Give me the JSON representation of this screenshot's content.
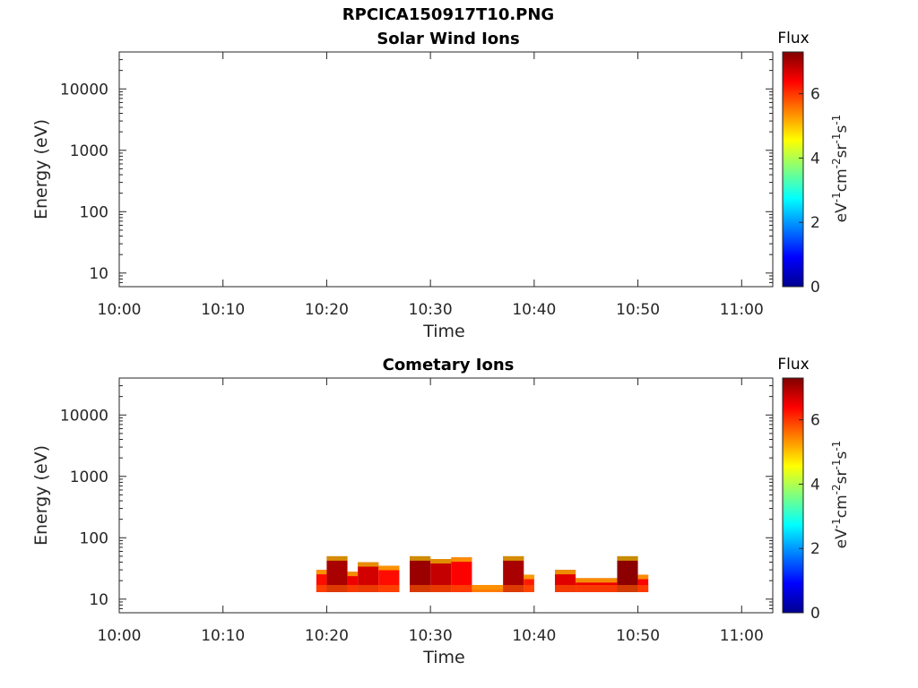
{
  "figure_title": "RPCICA150917T10.PNG",
  "chart_data": [
    {
      "type": "heatmap",
      "title": "Solar Wind Ions",
      "xlabel": "Time",
      "ylabel": "Energy (eV)",
      "x_ticks": [
        "10:00",
        "10:10",
        "10:20",
        "10:30",
        "10:40",
        "10:50",
        "11:00"
      ],
      "y_ticks": [
        "10",
        "100",
        "1000",
        "10000"
      ],
      "y_scale": "log",
      "xlim": [
        "10:00",
        "11:03"
      ],
      "ylim": [
        6,
        40000
      ],
      "colorbar": {
        "label_top": "Flux",
        "unit": "eV-1cm-2sr-1s-1",
        "ticks": [
          "0",
          "2",
          "4",
          "6"
        ],
        "range": [
          0,
          7.3
        ]
      },
      "colormap": "jet",
      "blocks": []
    },
    {
      "type": "heatmap",
      "title": "Cometary Ions",
      "xlabel": "Time",
      "ylabel": "Energy (eV)",
      "x_ticks": [
        "10:00",
        "10:10",
        "10:20",
        "10:30",
        "10:40",
        "10:50",
        "11:00"
      ],
      "y_ticks": [
        "10",
        "100",
        "1000",
        "10000"
      ],
      "y_scale": "log",
      "xlim": [
        "10:00",
        "11:03"
      ],
      "ylim": [
        6,
        40000
      ],
      "colorbar": {
        "label_top": "Flux",
        "unit": "eV-1cm-2sr-1s-1",
        "ticks": [
          "0",
          "2",
          "4",
          "6"
        ],
        "range": [
          0,
          7.3
        ]
      },
      "colormap": "jet",
      "blocks": [
        {
          "t0": "10:19",
          "t1": "10:20",
          "e_min": 13,
          "e_max": 30,
          "flux": 6.3
        },
        {
          "t0": "10:20",
          "t1": "10:22",
          "e_min": 13,
          "e_max": 50,
          "flux": 7.0
        },
        {
          "t0": "10:22",
          "t1": "10:23",
          "e_min": 13,
          "e_max": 28,
          "flux": 6.5
        },
        {
          "t0": "10:23",
          "t1": "10:25",
          "e_min": 13,
          "e_max": 40,
          "flux": 6.7
        },
        {
          "t0": "10:25",
          "t1": "10:27",
          "e_min": 13,
          "e_max": 35,
          "flux": 6.3
        },
        {
          "t0": "10:28",
          "t1": "10:30",
          "e_min": 13,
          "e_max": 50,
          "flux": 7.1
        },
        {
          "t0": "10:30",
          "t1": "10:32",
          "e_min": 13,
          "e_max": 45,
          "flux": 6.8
        },
        {
          "t0": "10:32",
          "t1": "10:34",
          "e_min": 13,
          "e_max": 48,
          "flux": 6.4
        },
        {
          "t0": "10:34",
          "t1": "10:37",
          "e_min": 13,
          "e_max": 17,
          "flux": 5.2
        },
        {
          "t0": "10:37",
          "t1": "10:39",
          "e_min": 13,
          "e_max": 50,
          "flux": 7.0
        },
        {
          "t0": "10:39",
          "t1": "10:40",
          "e_min": 13,
          "e_max": 25,
          "flux": 6.2
        },
        {
          "t0": "10:42",
          "t1": "10:44",
          "e_min": 13,
          "e_max": 30,
          "flux": 6.6
        },
        {
          "t0": "10:44",
          "t1": "10:48",
          "e_min": 13,
          "e_max": 22,
          "flux": 6.5
        },
        {
          "t0": "10:48",
          "t1": "10:50",
          "e_min": 13,
          "e_max": 50,
          "flux": 7.2
        },
        {
          "t0": "10:50",
          "t1": "10:51",
          "e_min": 13,
          "e_max": 25,
          "flux": 6.4
        }
      ]
    }
  ]
}
